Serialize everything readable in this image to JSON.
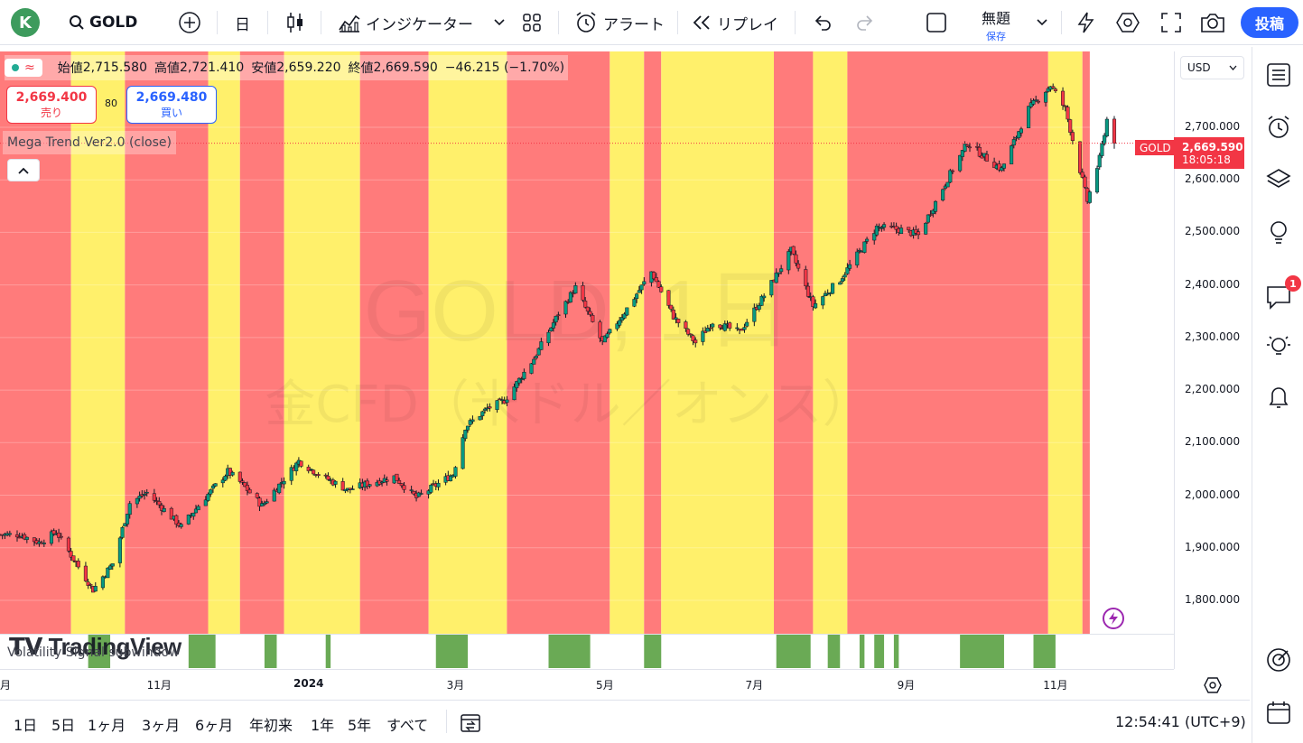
{
  "topbar": {
    "avatar_letter": "K",
    "symbol": "GOLD",
    "interval": "日",
    "indicators_label": "インジケーター",
    "alert_label": "アラート",
    "replay_label": "リプレイ",
    "layout_title": "無題",
    "save_label": "保存",
    "post_label": "投稿"
  },
  "legend": {
    "open_label": "始値",
    "open": "2,715.580",
    "high_label": "高値",
    "high": "2,721.410",
    "low_label": "安値",
    "low": "2,659.220",
    "close_label": "終値",
    "close": "2,669.590",
    "change": "−46.215 (−1.70%)"
  },
  "trade": {
    "sell_price": "2,669.400",
    "sell_label": "売り",
    "spread": "80",
    "buy_price": "2,669.480",
    "buy_label": "買い"
  },
  "indicator": {
    "name": "Mega Trend Ver2.0 (close)",
    "subwindow_name": "Volatility Signal subwindow"
  },
  "watermark": {
    "line1": "GOLD, 1日",
    "line2": "金CFD（米ドル／オンス）"
  },
  "logo_text": "TradingView",
  "yaxis": {
    "currency": "USD",
    "labels": [
      "2,700.000",
      "2,600.000",
      "2,500.000",
      "2,400.000",
      "2,300.000",
      "2,200.000",
      "2,100.000",
      "2,000.000",
      "1,900.000",
      "1,800.000"
    ],
    "symbol_tag": "GOLD",
    "last_price": "2,669.590",
    "countdown": "18:05:18"
  },
  "xaxis": {
    "labels": [
      "月",
      "11月",
      "2024",
      "3月",
      "5月",
      "7月",
      "9月",
      "11月"
    ]
  },
  "bottombar": {
    "ranges": [
      "1日",
      "5日",
      "1ヶ月",
      "3ヶ月",
      "6ヶ月",
      "年初来",
      "1年",
      "5年",
      "すべて"
    ],
    "clock": "12:54:41 (UTC+9)"
  },
  "rightbar": {
    "notification_count": "1"
  },
  "colors": {
    "bull": "#089981",
    "bear": "#f23645",
    "zone_red": "#ff7b7b",
    "zone_yellow": "#fff06b",
    "signal_green": "#6aaa55",
    "accent": "#2962ff"
  },
  "chart_data": {
    "type": "candlestick",
    "instrument": "GOLD",
    "interval": "1D",
    "ylim": [
      1750,
      2800
    ],
    "last_close": 2669.59,
    "trend_zones": [
      [
        "red",
        "2023-08-28",
        "2023-09-26"
      ],
      [
        "yellow",
        "2023-09-26",
        "2023-10-18"
      ],
      [
        "red",
        "2023-10-18",
        "2023-11-21"
      ],
      [
        "yellow",
        "2023-11-21",
        "2023-12-04"
      ],
      [
        "red",
        "2023-12-04",
        "2023-12-22"
      ],
      [
        "yellow",
        "2023-12-22",
        "2024-01-22"
      ],
      [
        "red",
        "2024-01-22",
        "2024-02-19"
      ],
      [
        "yellow",
        "2024-02-19",
        "2024-03-22"
      ],
      [
        "red",
        "2024-03-22",
        "2024-05-03"
      ],
      [
        "yellow",
        "2024-05-03",
        "2024-05-17"
      ],
      [
        "red",
        "2024-05-17",
        "2024-05-24"
      ],
      [
        "yellow",
        "2024-05-24",
        "2024-07-09"
      ],
      [
        "red",
        "2024-07-09",
        "2024-07-25"
      ],
      [
        "yellow",
        "2024-07-25",
        "2024-08-08"
      ],
      [
        "red",
        "2024-08-08",
        "2024-10-29"
      ],
      [
        "yellow",
        "2024-10-29",
        "2024-11-12"
      ],
      [
        "red",
        "2024-11-12",
        "2024-11-15"
      ]
    ],
    "signal_blocks": [
      [
        "2023-10-03",
        "2023-10-12"
      ],
      [
        "2023-11-13",
        "2023-11-24"
      ],
      [
        "2023-12-14",
        "2023-12-19"
      ],
      [
        "2024-01-08",
        "2024-01-10"
      ],
      [
        "2024-02-22",
        "2024-03-06"
      ],
      [
        "2024-04-08",
        "2024-04-25"
      ],
      [
        "2024-05-17",
        "2024-05-24"
      ],
      [
        "2024-07-10",
        "2024-07-24"
      ],
      [
        "2024-07-31",
        "2024-08-05"
      ],
      [
        "2024-08-13",
        "2024-08-15"
      ],
      [
        "2024-08-19",
        "2024-08-23"
      ],
      [
        "2024-08-27",
        "2024-08-29"
      ],
      [
        "2024-09-23",
        "2024-10-11"
      ],
      [
        "2024-10-23",
        "2024-11-01"
      ]
    ],
    "price_path": [
      [
        "2023-08-28",
        1925
      ],
      [
        "2023-09-05",
        1925
      ],
      [
        "2023-09-13",
        1910
      ],
      [
        "2023-09-20",
        1930
      ],
      [
        "2023-10-05",
        1820
      ],
      [
        "2023-10-13",
        1870
      ],
      [
        "2023-10-20",
        1985
      ],
      [
        "2023-10-27",
        2005
      ],
      [
        "2023-11-10",
        1940
      ],
      [
        "2023-11-17",
        1980
      ],
      [
        "2023-11-29",
        2045
      ],
      [
        "2023-12-04",
        2025
      ],
      [
        "2023-12-13",
        1980
      ],
      [
        "2023-12-28",
        2065
      ],
      [
        "2024-01-05",
        2040
      ],
      [
        "2024-01-17",
        2010
      ],
      [
        "2024-01-24",
        2020
      ],
      [
        "2024-02-05",
        2035
      ],
      [
        "2024-02-14",
        1995
      ],
      [
        "2024-02-29",
        2040
      ],
      [
        "2024-03-05",
        2130
      ],
      [
        "2024-03-14",
        2165
      ],
      [
        "2024-03-21",
        2180
      ],
      [
        "2024-04-02",
        2260
      ],
      [
        "2024-04-12",
        2345
      ],
      [
        "2024-04-19",
        2395
      ],
      [
        "2024-04-30",
        2290
      ],
      [
        "2024-05-10",
        2355
      ],
      [
        "2024-05-20",
        2425
      ],
      [
        "2024-05-29",
        2340
      ],
      [
        "2024-06-07",
        2290
      ],
      [
        "2024-06-14",
        2330
      ],
      [
        "2024-06-25",
        2310
      ],
      [
        "2024-07-05",
        2380
      ],
      [
        "2024-07-16",
        2465
      ],
      [
        "2024-07-25",
        2360
      ],
      [
        "2024-08-05",
        2410
      ],
      [
        "2024-08-20",
        2510
      ],
      [
        "2024-08-30",
        2505
      ],
      [
        "2024-09-06",
        2495
      ],
      [
        "2024-09-20",
        2620
      ],
      [
        "2024-09-26",
        2670
      ],
      [
        "2024-10-04",
        2640
      ],
      [
        "2024-10-10",
        2620
      ],
      [
        "2024-10-21",
        2735
      ],
      [
        "2024-10-30",
        2780
      ],
      [
        "2024-11-05",
        2735
      ],
      [
        "2024-11-14",
        2560
      ],
      [
        "2024-11-19",
        2640
      ],
      [
        "2024-11-22",
        2715
      ],
      [
        "2024-11-25",
        2669.59
      ]
    ]
  }
}
